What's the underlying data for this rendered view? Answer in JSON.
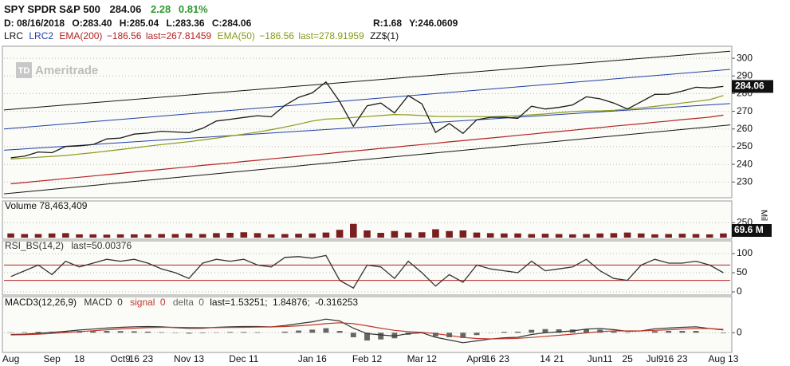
{
  "header": {
    "symbol": "SPY SPDR S&P 500",
    "change": "2.28",
    "change_pct": "0.81%",
    "date": "D: 08/16/2018",
    "open": "O:283.40",
    "high": "H:285.04",
    "low": "L:283.36",
    "close": "C:284.06",
    "range": "R:1.68",
    "y": "Y:246.0609",
    "zigzag": "ZZ$(1)",
    "logo": "TD",
    "watermark": "Ameritrade"
  },
  "chart_data": [
    {
      "type": "line",
      "color": "#1a1a1a",
      "grid": true,
      "values": [
        243.7,
        244.6,
        247.0,
        246.6,
        250.1,
        250.4,
        251.2,
        254.4,
        254.9,
        257.1,
        257.7,
        258.7,
        258.3,
        257.9,
        260.4,
        264.5,
        265.5,
        266.5,
        267.5,
        266.9,
        273.4,
        277.9,
        280.4,
        286.6,
        275.5,
        261.5,
        273.1,
        274.7,
        269.1,
        278.9,
        274.2,
        258.1,
        263.1,
        257.5,
        265.2,
        266.6,
        266.6,
        266.0,
        272.9,
        271.3,
        272.2,
        273.6,
        278.2,
        277.1,
        274.7,
        271.3,
        275.4,
        279.6,
        279.7,
        281.4,
        283.6,
        283.2,
        284.06
      ],
      "channels": [
        {
          "name": "LRC",
          "color": "#111111",
          "lines": [
            [
              270.8,
              304
            ],
            [
              223.3,
              262.3
            ]
          ]
        },
        {
          "name": "LRC2",
          "color": "#1f3fa6",
          "lines": [
            [
              260,
              293.7
            ],
            [
              248,
              274.4
            ]
          ]
        }
      ],
      "series": [
        {
          "name": "EMA(200)",
          "color": "#b22222",
          "readout": [
            "−186.56",
            "last=267.81459"
          ],
          "values": [
            229,
            229.7,
            230.5,
            231.2,
            232,
            232.7,
            233.4,
            234.2,
            234.9,
            235.7,
            236.4,
            237.1,
            237.9,
            238.6,
            239.4,
            240.1,
            240.8,
            241.6,
            242.3,
            243.1,
            243.8,
            244.5,
            245.3,
            246,
            246.8,
            247.5,
            248.2,
            249,
            249.7,
            250.5,
            251.2,
            251.9,
            252.7,
            253.4,
            254.2,
            254.9,
            255.6,
            256.4,
            257.1,
            257.9,
            258.6,
            259.3,
            260.1,
            260.8,
            261.6,
            262.3,
            263,
            263.8,
            264.5,
            265.3,
            266,
            266.7,
            267.81
          ]
        },
        {
          "name": "EMA(50)",
          "color": "#8a9a1a",
          "readout": [
            "−186.56",
            "last=278.91959"
          ],
          "values": [
            243,
            243.5,
            244,
            244.5,
            245,
            245.8,
            246.6,
            247.5,
            248.4,
            249.3,
            250.3,
            251.2,
            252,
            252.8,
            253.8,
            254.9,
            256,
            257.1,
            258.2,
            259.6,
            261.1,
            262.7,
            264.5,
            265.6,
            265.9,
            266.5,
            267,
            267.6,
            268.2,
            268,
            267.6,
            267.1,
            267,
            267,
            267,
            266.9,
            267.2,
            267.5,
            268,
            268.5,
            269.2,
            269.9,
            270.2,
            270.2,
            270.6,
            271.3,
            272,
            272.8,
            273.7,
            274.7,
            275.6,
            276.6,
            278.92
          ]
        }
      ],
      "ylim": [
        222,
        305
      ],
      "yticks": [
        230,
        240,
        250,
        260,
        270,
        280,
        290,
        300
      ]
    },
    {
      "type": "bar",
      "title": "Volume 78,463,409",
      "color": "#7a1f1f",
      "unit_label": "Mil",
      "last_label": "69.6 M",
      "values": [
        70,
        60,
        60,
        70,
        75,
        55,
        55,
        50,
        55,
        55,
        55,
        60,
        60,
        70,
        60,
        75,
        80,
        90,
        75,
        55,
        60,
        65,
        70,
        85,
        130,
        230,
        120,
        80,
        110,
        85,
        90,
        140,
        110,
        120,
        85,
        75,
        70,
        70,
        60,
        65,
        60,
        55,
        60,
        70,
        75,
        85,
        70,
        55,
        60,
        65,
        60,
        55,
        70
      ],
      "ylim": [
        0,
        480
      ],
      "yticks": [
        250
      ]
    },
    {
      "type": "line",
      "title": "RSI_BS(14,2)",
      "readout": "last=50.00376",
      "color": "#333333",
      "levels": [
        70,
        30
      ],
      "level_color": "#b22222",
      "values": [
        40,
        55,
        70,
        45,
        80,
        65,
        75,
        85,
        80,
        85,
        75,
        60,
        50,
        35,
        75,
        85,
        80,
        85,
        70,
        65,
        90,
        92,
        88,
        95,
        30,
        10,
        70,
        65,
        35,
        80,
        50,
        15,
        45,
        25,
        70,
        60,
        55,
        50,
        80,
        55,
        60,
        65,
        85,
        55,
        35,
        30,
        70,
        85,
        75,
        75,
        80,
        70,
        50
      ],
      "ylim": [
        0,
        100
      ],
      "yticks": [
        0,
        50,
        100
      ]
    },
    {
      "type": "macd",
      "title": "MACD3(12,26,9)",
      "readout": [
        "last=1.53251;",
        "1.84876;",
        "-0.316253"
      ],
      "series": [
        {
          "name": "MACD",
          "readout": "0",
          "color": "#333333",
          "values": [
            -1,
            -0.8,
            -0.3,
            0.2,
            0.8,
            1.5,
            2,
            2.6,
            3,
            3.3,
            3.4,
            3.3,
            2.8,
            2.4,
            2.5,
            3,
            3.3,
            3.4,
            3.4,
            3.2,
            4,
            5,
            6,
            7.5,
            6.5,
            2.5,
            -0.5,
            -1.2,
            -1.8,
            -0.5,
            0,
            -2.5,
            -4,
            -5.5,
            -4.5,
            -3.5,
            -2.8,
            -2.5,
            -1,
            0,
            0.5,
            1,
            2,
            2.3,
            1.7,
            0.8,
            1,
            2.2,
            2.6,
            3,
            3.3,
            2.3,
            1.53
          ]
        },
        {
          "name": "signal",
          "readout": "0",
          "color": "#c0392b",
          "values": [
            -1.2,
            -1.1,
            -0.8,
            -0.4,
            0.1,
            0.6,
            1.1,
            1.6,
            2.1,
            2.5,
            2.8,
            3,
            3,
            2.9,
            2.8,
            2.8,
            2.9,
            3,
            3.1,
            3.2,
            3.4,
            3.8,
            4.3,
            5,
            5.5,
            5,
            3.8,
            2.5,
            1.3,
            0.6,
            0.2,
            -0.5,
            -1.5,
            -2.6,
            -3.2,
            -3.4,
            -3.3,
            -3.1,
            -2.6,
            -2,
            -1.4,
            -0.8,
            -0.1,
            0.6,
            1,
            1,
            1,
            1.3,
            1.6,
            2,
            2.3,
            2.3,
            1.85
          ]
        },
        {
          "name": "delta",
          "readout": "0",
          "color": "#666666",
          "kind": "bar",
          "values": [
            0.2,
            0.3,
            0.5,
            0.6,
            0.7,
            0.9,
            0.9,
            1,
            0.9,
            0.8,
            0.6,
            0.3,
            -0.2,
            -0.5,
            -0.3,
            0.2,
            0.4,
            0.4,
            0.3,
            0,
            0.6,
            1.2,
            1.7,
            2.5,
            1,
            -2.5,
            -4.3,
            -3.7,
            -3.1,
            -1.1,
            -0.2,
            -2,
            -2.5,
            -2.9,
            -1.3,
            -0.1,
            0.5,
            0.6,
            1.6,
            2,
            1.9,
            1.8,
            2.1,
            1.7,
            0.7,
            -0.2,
            0,
            0.9,
            1,
            1,
            1,
            0,
            -0.32
          ]
        }
      ],
      "categories": [
        "Aug",
        null,
        null,
        "Sep",
        null,
        "18",
        null,
        null,
        "Oct9",
        "16",
        "23",
        null,
        null,
        "Nov 13",
        null,
        null,
        null,
        "Dec 11",
        null,
        null,
        null,
        null,
        "Jan 16",
        null,
        null,
        null,
        "Feb 12",
        null,
        null,
        null,
        "Mar 12",
        null,
        null,
        null,
        "Apr9",
        "16",
        "23",
        null,
        null,
        "14",
        "21",
        null,
        null,
        "Jun11",
        null,
        "25",
        null,
        "Jul9",
        "16",
        "23",
        null,
        null,
        "Aug 13"
      ],
      "ylim": [
        -10,
        12
      ],
      "yticks": [
        0
      ]
    }
  ]
}
